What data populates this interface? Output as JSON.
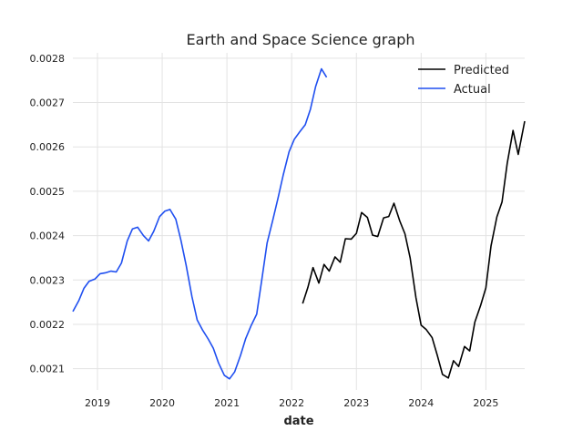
{
  "chart_data": {
    "type": "line",
    "title": "Earth and Space Science graph",
    "xlabel": "date",
    "ylabel": "",
    "xlim": [
      2018.62,
      2025.6
    ],
    "ylim": [
      0.002052,
      0.002812
    ],
    "grid": true,
    "legend_position": "top-right",
    "x_ticks": [
      2019,
      2020,
      2021,
      2022,
      2023,
      2024,
      2025
    ],
    "x_tick_labels": [
      "2019",
      "2020",
      "2021",
      "2022",
      "2023",
      "2024",
      "2025"
    ],
    "y_ticks": [
      0.0021,
      0.0022,
      0.0023,
      0.0024,
      0.0025,
      0.0026,
      0.0027,
      0.0028
    ],
    "y_tick_labels": [
      "0.0021",
      "0.0022",
      "0.0023",
      "0.0024",
      "0.0025",
      "0.0026",
      "0.0027",
      "0.0028"
    ],
    "series": [
      {
        "name": "Predicted",
        "color": "#000000",
        "x": [
          2022.17,
          2022.25,
          2022.33,
          2022.42,
          2022.5,
          2022.58,
          2022.67,
          2022.75,
          2022.83,
          2022.92,
          2023.0,
          2023.08,
          2023.17,
          2023.25,
          2023.33,
          2023.42,
          2023.5,
          2023.58,
          2023.67,
          2023.75,
          2023.83,
          2023.92,
          2024.0,
          2024.08,
          2024.17,
          2024.25,
          2024.33,
          2024.42,
          2024.5,
          2024.58,
          2024.67,
          2024.75,
          2024.83,
          2024.92,
          2025.0,
          2025.08,
          2025.17,
          2025.25,
          2025.33,
          2025.42,
          2025.5,
          2025.6
        ],
        "values": [
          0.002247,
          0.002283,
          0.002328,
          0.002293,
          0.002335,
          0.00232,
          0.002352,
          0.00234,
          0.002393,
          0.002392,
          0.002405,
          0.002452,
          0.002441,
          0.002401,
          0.002398,
          0.00244,
          0.002443,
          0.002473,
          0.002433,
          0.002404,
          0.00235,
          0.00226,
          0.002198,
          0.002188,
          0.00217,
          0.00213,
          0.002087,
          0.002079,
          0.002118,
          0.002105,
          0.00215,
          0.00214,
          0.002205,
          0.002243,
          0.002282,
          0.002377,
          0.002442,
          0.002476,
          0.002563,
          0.002637,
          0.002583,
          0.002658
        ]
      },
      {
        "name": "Actual",
        "color": "#1f4ff0",
        "x": [
          2018.62,
          2018.71,
          2018.79,
          2018.87,
          2018.96,
          2019.04,
          2019.12,
          2019.21,
          2019.29,
          2019.37,
          2019.46,
          2019.54,
          2019.62,
          2019.71,
          2019.79,
          2019.87,
          2019.96,
          2020.04,
          2020.12,
          2020.21,
          2020.29,
          2020.37,
          2020.46,
          2020.54,
          2020.62,
          2020.71,
          2020.79,
          2020.87,
          2020.96,
          2021.04,
          2021.12,
          2021.21,
          2021.29,
          2021.37,
          2021.46,
          2021.54,
          2021.62,
          2021.71,
          2021.79,
          2021.87,
          2021.96,
          2022.04,
          2022.12,
          2022.21,
          2022.29,
          2022.37,
          2022.46,
          2022.54
        ],
        "values": [
          0.002229,
          0.002253,
          0.002281,
          0.002297,
          0.002302,
          0.002314,
          0.002316,
          0.00232,
          0.002318,
          0.002338,
          0.002388,
          0.002415,
          0.002419,
          0.0024,
          0.002388,
          0.00241,
          0.002443,
          0.002455,
          0.002459,
          0.002437,
          0.002389,
          0.002333,
          0.002262,
          0.00221,
          0.002188,
          0.002167,
          0.002146,
          0.002113,
          0.002085,
          0.002077,
          0.002093,
          0.00213,
          0.002168,
          0.002196,
          0.002223,
          0.002302,
          0.002383,
          0.002436,
          0.002485,
          0.002537,
          0.002589,
          0.002617,
          0.002633,
          0.00265,
          0.002685,
          0.002736,
          0.002776,
          0.002757
        ]
      }
    ]
  }
}
